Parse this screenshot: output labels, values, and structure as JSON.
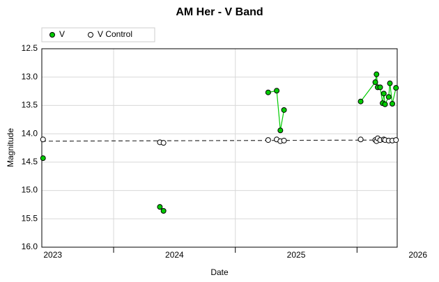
{
  "chart_data": {
    "type": "scatter",
    "title": "AM Her - V Band",
    "x_label": "Date",
    "y_label": "Magnitude",
    "xlim": [
      2022.91,
      2025.83
    ],
    "xticks": [
      2023,
      2024,
      2025,
      2026
    ],
    "xgrid_ticks": [
      2023.5,
      2024.5,
      2025.5
    ],
    "ylim": [
      12.5,
      16.0
    ],
    "y_inverted": true,
    "yticks": [
      12.5,
      {
        "value": 13,
        "label": "13.0"
      },
      13.5,
      {
        "value": 14,
        "label": "14.0"
      },
      14.5,
      {
        "value": 15,
        "label": "15.0"
      },
      15.5,
      {
        "value": 16,
        "label": "16.0"
      }
    ],
    "grid": true,
    "legend": "top-left",
    "series": [
      {
        "name": "V",
        "color": "#00cc00",
        "line": true,
        "x": [
          2022.92,
          null,
          2023.88,
          2023.91,
          null,
          2024.77,
          2024.84,
          2024.87,
          2024.9,
          null,
          2025.53,
          2025.65,
          2025.66,
          2025.67,
          2025.69,
          2025.71,
          2025.72,
          2025.73,
          2025.76,
          2025.77,
          2025.79,
          2025.82
        ],
        "values": [
          14.43,
          null,
          15.29,
          15.36,
          null,
          13.27,
          13.24,
          13.94,
          13.58,
          null,
          13.43,
          13.09,
          12.95,
          13.18,
          13.18,
          13.46,
          13.29,
          13.48,
          13.35,
          13.11,
          13.47,
          13.19
        ]
      },
      {
        "name": "V Control",
        "color": "#ffffff",
        "line": false,
        "x": [
          2022.92,
          2023.88,
          2023.91,
          2024.77,
          2024.84,
          2024.87,
          2024.9,
          2025.53,
          2025.65,
          2025.66,
          2025.67,
          2025.69,
          2025.72,
          2025.73,
          2025.76,
          2025.79,
          2025.82
        ],
        "values": [
          14.1,
          14.15,
          14.16,
          14.11,
          14.1,
          14.13,
          14.12,
          14.1,
          14.11,
          14.13,
          14.08,
          14.11,
          14.1,
          14.11,
          14.12,
          14.12,
          14.11
        ]
      }
    ],
    "trendline": {
      "x": [
        2022.91,
        2025.83
      ],
      "values": [
        14.13,
        14.11
      ],
      "color": "#333333"
    }
  }
}
